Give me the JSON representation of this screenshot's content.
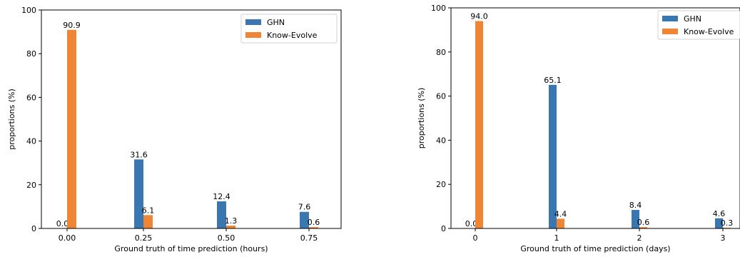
{
  "chart_data": [
    {
      "type": "bar",
      "categories": [
        "0.00",
        "0.25",
        "0.50",
        "0.75"
      ],
      "series": [
        {
          "name": "GHN",
          "values": [
            0.0,
            31.6,
            12.4,
            7.6
          ],
          "labels": [
            "0.0",
            "31.6",
            "12.4",
            "7.6"
          ],
          "color": "#3a76af"
        },
        {
          "name": "Know-Evolve",
          "values": [
            90.9,
            6.1,
            1.3,
            0.6
          ],
          "labels": [
            "90.9",
            "6.1",
            "1.3",
            "0.6"
          ],
          "color": "#ef8636"
        }
      ],
      "xlabel": "Ground truth of time prediction (hours)",
      "ylabel": "proportions (%)",
      "ylim": [
        0,
        100
      ],
      "yticks": [
        "0",
        "20",
        "40",
        "60",
        "80",
        "100"
      ],
      "grid": false,
      "legend": "top-right"
    },
    {
      "type": "bar",
      "categories": [
        "0",
        "1",
        "2",
        "3"
      ],
      "series": [
        {
          "name": "GHN",
          "values": [
            0.0,
            65.1,
            8.4,
            4.6
          ],
          "labels": [
            "0.0",
            "65.1",
            "8.4",
            "4.6"
          ],
          "color": "#3a76af"
        },
        {
          "name": "Know-Evolve",
          "values": [
            94.0,
            4.4,
            0.6,
            0.3
          ],
          "labels": [
            "94.0",
            "4.4",
            "0.6",
            "0.3"
          ],
          "color": "#ef8636"
        }
      ],
      "xlabel": "Ground truth of time prediction (days)",
      "ylabel": "proportions (%)",
      "ylim": [
        0,
        100
      ],
      "yticks": [
        "0",
        "20",
        "40",
        "60",
        "80",
        "100"
      ],
      "grid": false,
      "legend": "top-right"
    }
  ]
}
